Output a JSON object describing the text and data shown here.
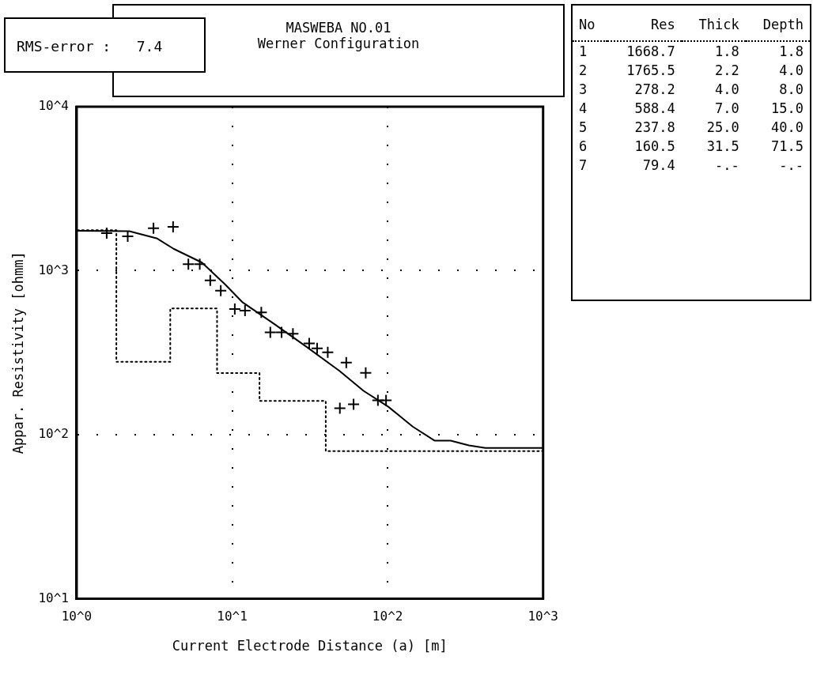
{
  "chart_data": {
    "type": "scatter",
    "title": "MASWEBA NO.01",
    "subtitle": "Werner Configuration",
    "xlabel": "Current Electrode Distance (a) [m]",
    "ylabel": "Appar. Resistivity [ohmm]",
    "log": "xy",
    "grid": true,
    "legend": false,
    "xlim": [
      1,
      1000
    ],
    "xticks": [
      {
        "value": 1,
        "label": "10^0"
      },
      {
        "value": 10,
        "label": "10^1"
      },
      {
        "value": 100,
        "label": "10^2"
      },
      {
        "value": 1000,
        "label": "10^3"
      }
    ],
    "ylim": [
      10,
      10000
    ],
    "yticks": [
      {
        "value": 10,
        "label": "10^1"
      },
      {
        "value": 100,
        "label": "10^2"
      },
      {
        "value": 1000,
        "label": "10^3"
      },
      {
        "value": 10000,
        "label": "10^4"
      }
    ],
    "series": [
      {
        "type": "scatter",
        "color": "#000000",
        "marker": "cross",
        "x": [
          1.56,
          2.13,
          3.12,
          4.17,
          5.23,
          6.19,
          7.23,
          8.45,
          10.4,
          12.1,
          15.4,
          17.6,
          20.8,
          24.6,
          31.3,
          35.2,
          41.2,
          49.3,
          54.2,
          60.4,
          72.3,
          86.6,
          97.7
        ],
        "values": [
          1695,
          1622,
          1815,
          1853,
          1094,
          1094,
          873,
          755,
          583,
          570,
          557,
          421,
          421,
          412,
          360,
          336,
          318,
          145,
          275,
          153,
          238,
          162,
          162
        ]
      },
      {
        "type": "line",
        "color": "#000000",
        "marker": "none",
        "line_style": "solid",
        "x": [
          1,
          2.18,
          3.3,
          4.2,
          6.4,
          9.0,
          11.7,
          18.8,
          30,
          49,
          70,
          101,
          145,
          200,
          254,
          333,
          425,
          1000
        ],
        "values": [
          1750,
          1740,
          1570,
          1360,
          1120,
          826,
          640,
          471,
          344,
          245,
          185,
          148,
          112,
          92,
          92,
          86,
          83,
          83
        ]
      },
      {
        "type": "step",
        "color": "#000000",
        "marker": "none",
        "line_style": "dotted",
        "x": [
          1,
          1.8,
          4.0,
          8.0,
          15.0,
          40.0,
          71.5,
          1000
        ],
        "values": [
          1668.7,
          1765.5,
          278.2,
          588.4,
          237.8,
          160.5,
          79.4,
          79.4
        ]
      }
    ],
    "annotations": [
      "RMS-error :   7.4",
      "No Res Thick Depth",
      "1 1668.7 1.8 1.8",
      "2 1765.5 2.2 4.0",
      "3 278.2 4.0 8.0",
      "4 588.4 7.0 15.0",
      "5 237.8 25.0 40.0",
      "6 160.5 31.5 71.5",
      "7 79.4 -.- -.-"
    ]
  }
}
